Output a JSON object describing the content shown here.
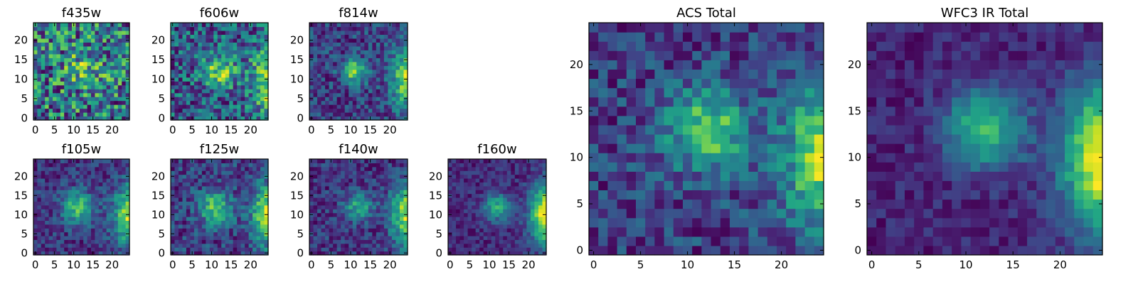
{
  "chart_data": [
    {
      "type": "heatmap",
      "title": "f435w",
      "grid_size": 25,
      "colormap": "viridis",
      "xlim": [
        -0.5,
        24.5
      ],
      "ylim": [
        -0.5,
        24.5
      ],
      "xticks": [
        0,
        5,
        10,
        15,
        20
      ],
      "yticks": [
        0,
        5,
        10,
        15,
        20
      ],
      "grid": false,
      "emission_center": [
        13,
        13
      ],
      "emission_sigma": 3.5,
      "emission_amplitude": 0.15,
      "background_level": 0.66,
      "noise_level": 0.5,
      "seed": 11
    },
    {
      "type": "heatmap",
      "title": "f606w",
      "grid_size": 25,
      "colormap": "viridis",
      "xlim": [
        -0.5,
        24.5
      ],
      "ylim": [
        -0.5,
        24.5
      ],
      "xticks": [
        0,
        5,
        10,
        15,
        20
      ],
      "yticks": [
        0,
        5,
        10,
        15,
        20
      ],
      "grid": false,
      "emission_center": [
        12,
        12
      ],
      "emission_sigma": 3.0,
      "emission_amplitude": 0.35,
      "edge_source_amplitude": 0.45,
      "background_level": 0.42,
      "noise_level": 0.45,
      "seed": 22
    },
    {
      "type": "heatmap",
      "title": "f814w",
      "grid_size": 25,
      "colormap": "viridis",
      "xlim": [
        -0.5,
        24.5
      ],
      "ylim": [
        -0.5,
        24.5
      ],
      "xticks": [
        0,
        5,
        10,
        15,
        20
      ],
      "yticks": [
        0,
        5,
        10,
        15,
        20
      ],
      "grid": false,
      "emission_center": [
        11,
        12
      ],
      "emission_sigma": 2.2,
      "emission_amplitude": 0.55,
      "edge_source_amplitude": 0.6,
      "background_level": 0.32,
      "noise_level": 0.38,
      "seed": 33
    },
    {
      "type": "heatmap",
      "title": "f105w",
      "grid_size": 25,
      "colormap": "viridis",
      "xlim": [
        -0.5,
        24.5
      ],
      "ylim": [
        -0.5,
        24.5
      ],
      "xticks": [
        0,
        5,
        10,
        15,
        20
      ],
      "yticks": [
        0,
        5,
        10,
        15,
        20
      ],
      "grid": false,
      "emission_center": [
        11,
        12
      ],
      "emission_sigma": 3.0,
      "emission_amplitude": 0.5,
      "edge_source_amplitude": 0.7,
      "background_level": 0.25,
      "noise_level": 0.3,
      "seed": 44
    },
    {
      "type": "heatmap",
      "title": "f125w",
      "grid_size": 25,
      "colormap": "viridis",
      "xlim": [
        -0.5,
        24.5
      ],
      "ylim": [
        -0.5,
        24.5
      ],
      "xticks": [
        0,
        5,
        10,
        15,
        20
      ],
      "yticks": [
        0,
        5,
        10,
        15,
        20
      ],
      "grid": false,
      "emission_center": [
        11,
        12
      ],
      "emission_sigma": 3.0,
      "emission_amplitude": 0.45,
      "edge_source_amplitude": 0.65,
      "background_level": 0.3,
      "noise_level": 0.32,
      "seed": 55
    },
    {
      "type": "heatmap",
      "title": "f140w",
      "grid_size": 25,
      "colormap": "viridis",
      "xlim": [
        -0.5,
        24.5
      ],
      "ylim": [
        -0.5,
        24.5
      ],
      "xticks": [
        0,
        5,
        10,
        15,
        20
      ],
      "yticks": [
        0,
        5,
        10,
        15,
        20
      ],
      "grid": false,
      "emission_center": [
        12,
        12
      ],
      "emission_sigma": 2.5,
      "emission_amplitude": 0.42,
      "edge_source_amplitude": 0.75,
      "background_level": 0.25,
      "noise_level": 0.32,
      "seed": 66
    },
    {
      "type": "heatmap",
      "title": "f160w",
      "grid_size": 25,
      "colormap": "viridis",
      "xlim": [
        -0.5,
        24.5
      ],
      "ylim": [
        -0.5,
        24.5
      ],
      "xticks": [
        0,
        5,
        10,
        15,
        20
      ],
      "yticks": [
        0,
        5,
        10,
        15,
        20
      ],
      "grid": false,
      "emission_center": [
        12,
        12
      ],
      "emission_sigma": 2.5,
      "emission_amplitude": 0.45,
      "edge_source_amplitude": 0.85,
      "background_level": 0.22,
      "noise_level": 0.22,
      "seed": 77
    },
    {
      "type": "heatmap",
      "title": "ACS Total",
      "grid_size": 25,
      "colormap": "viridis",
      "xlim": [
        -0.5,
        24.5
      ],
      "ylim": [
        -0.5,
        24.5
      ],
      "xticks": [
        0,
        5,
        10,
        15,
        20
      ],
      "yticks": [
        0,
        5,
        10,
        15,
        20
      ],
      "grid": false,
      "emission_center": [
        12,
        13
      ],
      "emission_sigma": 3.0,
      "emission_amplitude": 0.45,
      "edge_source_amplitude": 0.55,
      "background_level": 0.42,
      "noise_level": 0.3,
      "seed": 88
    },
    {
      "type": "heatmap",
      "title": "WFC3 IR Total",
      "grid_size": 25,
      "colormap": "viridis",
      "xlim": [
        -0.5,
        24.5
      ],
      "ylim": [
        -0.5,
        24.5
      ],
      "xticks": [
        0,
        5,
        10,
        15,
        20
      ],
      "yticks": [
        0,
        5,
        10,
        15,
        20
      ],
      "grid": false,
      "emission_center": [
        12,
        13
      ],
      "emission_sigma": 3.0,
      "emission_amplitude": 0.5,
      "edge_source_amplitude": 0.85,
      "background_level": 0.25,
      "noise_level": 0.18,
      "seed": 99
    }
  ]
}
